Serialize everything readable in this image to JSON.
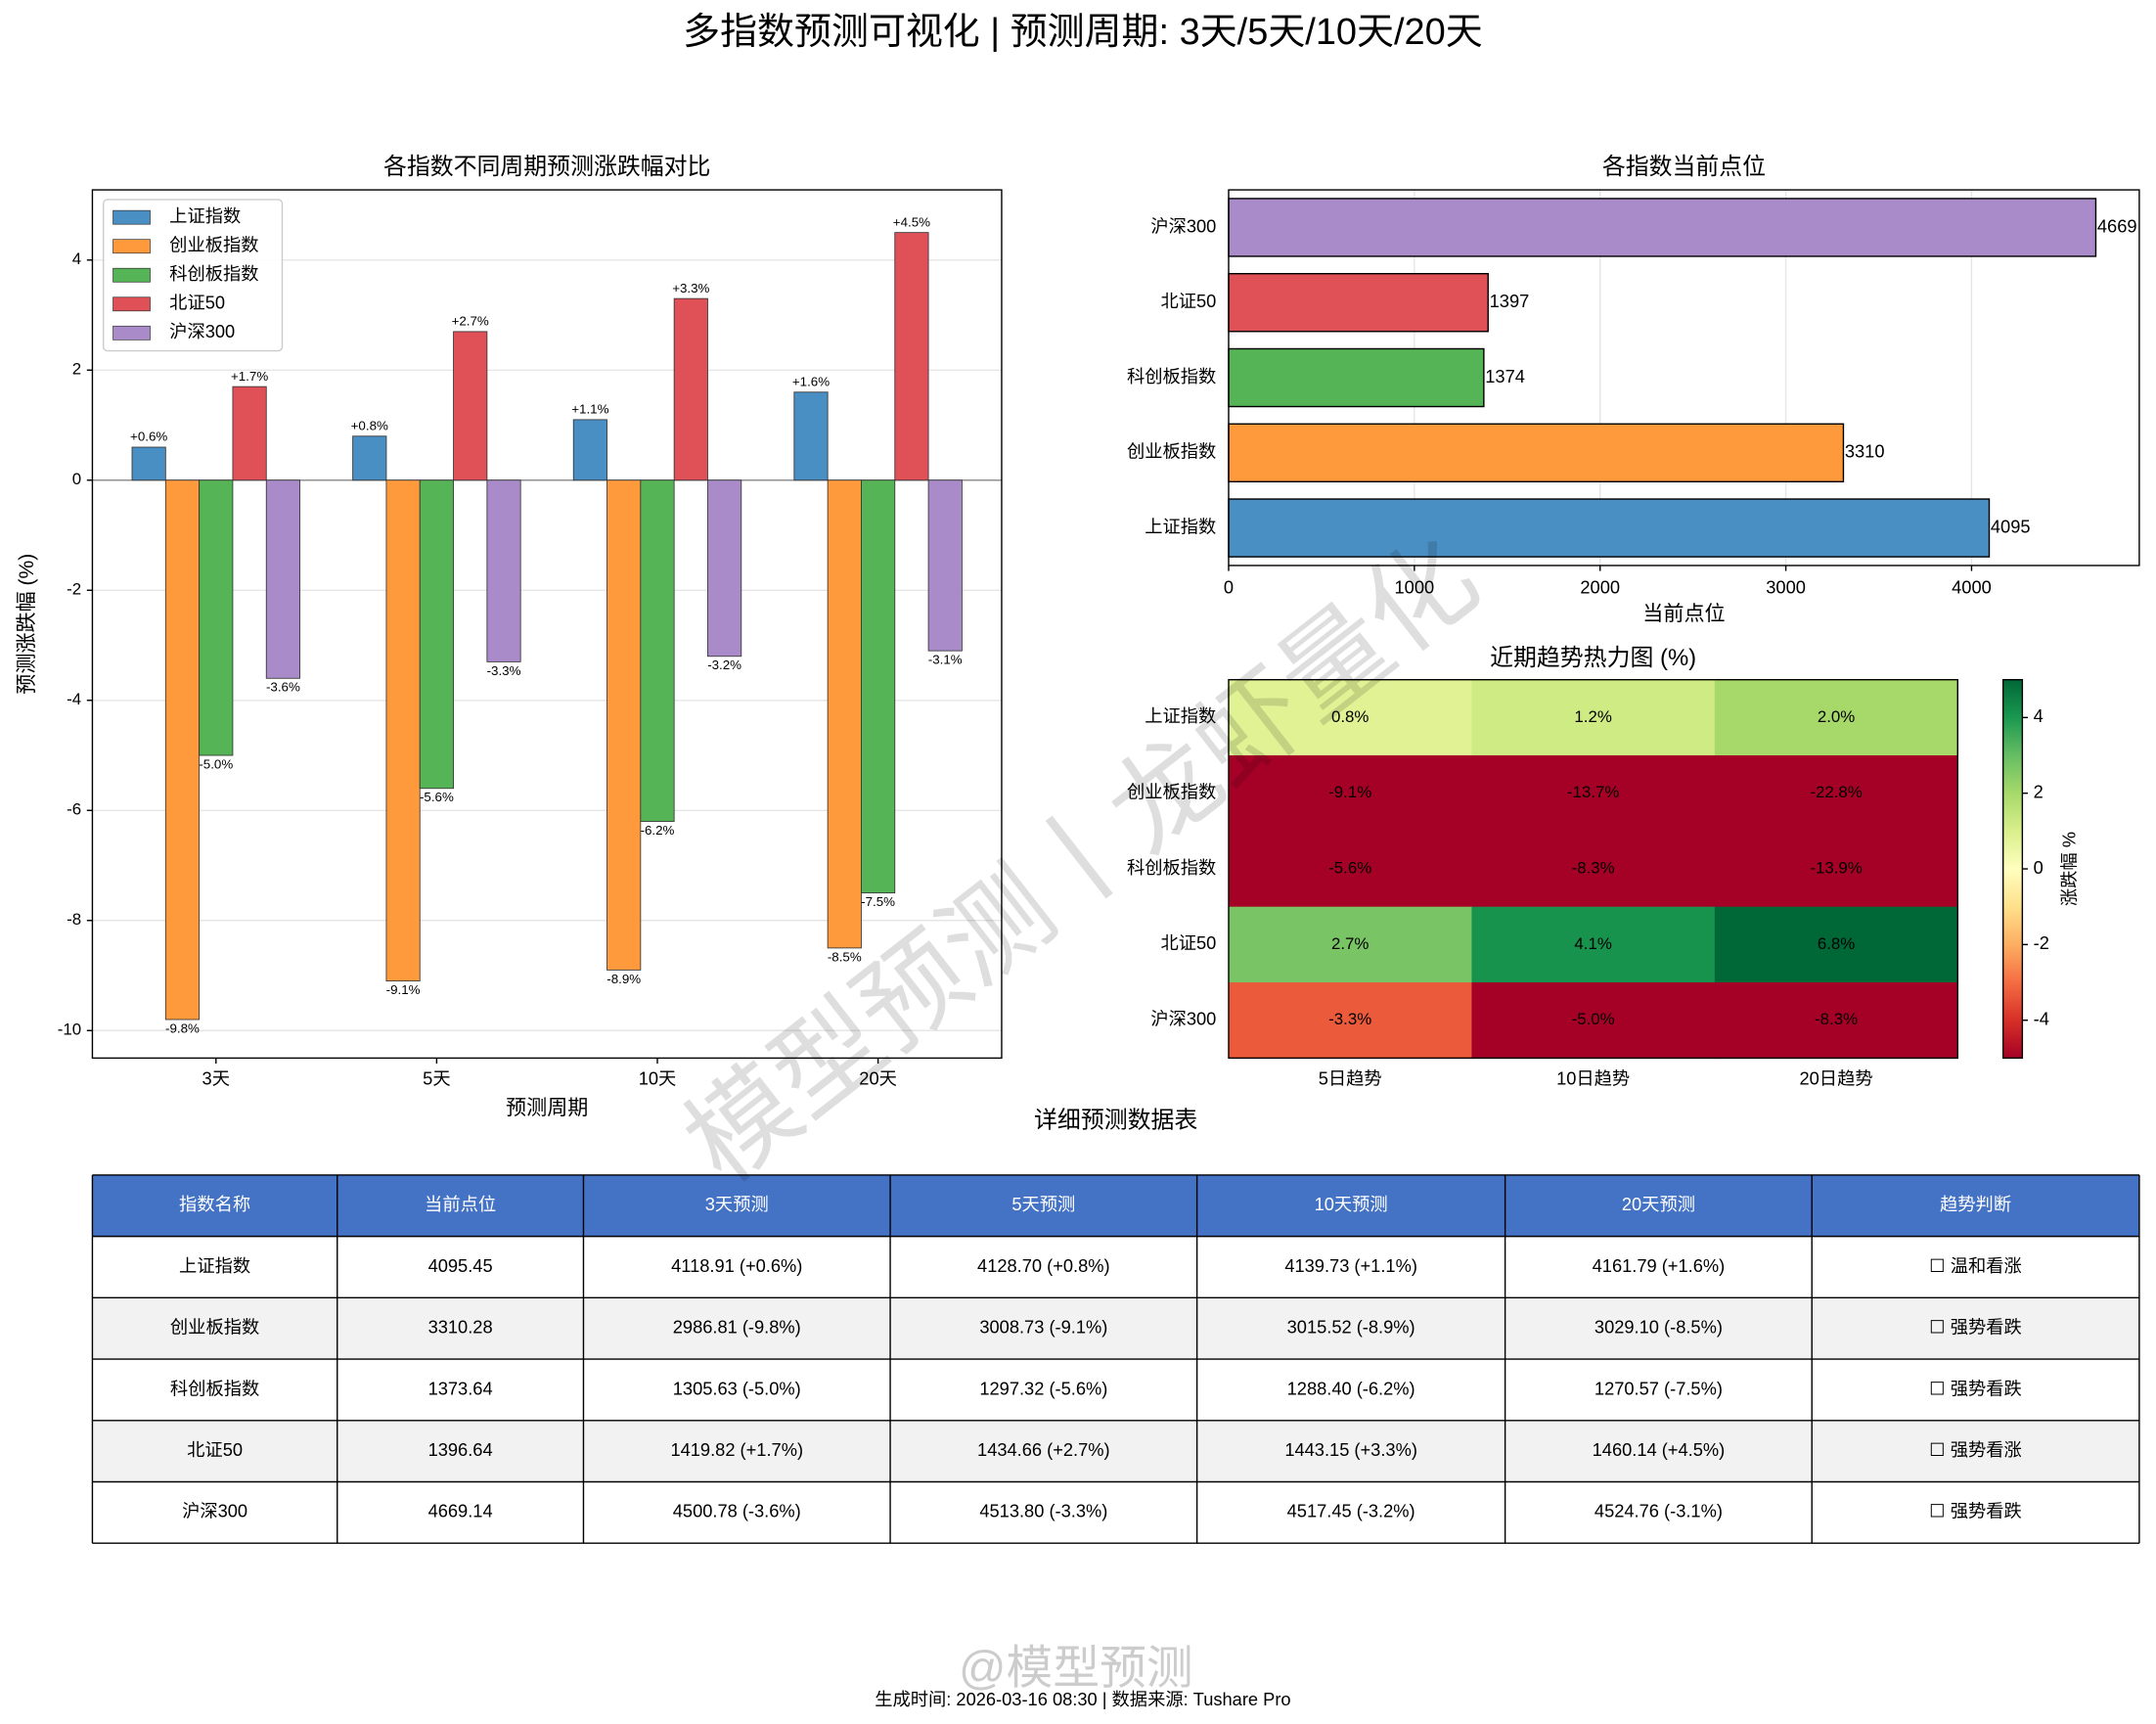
{
  "title": "多指数预测可视化 | 预测周期: 3天/5天/10天/20天",
  "chart_data": [
    {
      "type": "bar",
      "title": "各指数不同周期预测涨跌幅对比",
      "xlabel": "预测周期",
      "ylabel": "预测涨跌幅 (%)",
      "categories": [
        "3天",
        "5天",
        "10天",
        "20天"
      ],
      "series": [
        {
          "name": "上证指数",
          "color": "#4a8fc4",
          "values": [
            0.6,
            0.8,
            1.1,
            1.6
          ],
          "value_labels": [
            "+0.6%",
            "+0.8%",
            "+1.1%",
            "+1.6%"
          ]
        },
        {
          "name": "创业板指数",
          "color": "#ff9a3c",
          "values": [
            -9.8,
            -9.1,
            -8.9,
            -8.5
          ],
          "value_labels": [
            "-9.8%",
            "-9.1%",
            "-8.9%",
            "-8.5%"
          ]
        },
        {
          "name": "科创板指数",
          "color": "#55b455",
          "values": [
            -5.0,
            -5.6,
            -6.2,
            -7.5
          ],
          "value_labels": [
            "-5.0%",
            "-5.6%",
            "-6.2%",
            "-7.5%"
          ]
        },
        {
          "name": "北证50",
          "color": "#e05057",
          "values": [
            1.7,
            2.7,
            3.3,
            4.5
          ],
          "value_labels": [
            "+1.7%",
            "+2.7%",
            "+3.3%",
            "+4.5%"
          ]
        },
        {
          "name": "沪深300",
          "color": "#a98bca",
          "values": [
            -3.6,
            -3.3,
            -3.2,
            -3.1
          ],
          "value_labels": [
            "-3.6%",
            "-3.3%",
            "-3.2%",
            "-3.1%"
          ]
        }
      ],
      "ylim": [
        -10.5,
        5.275
      ],
      "yticks": [
        -10,
        -8,
        -6,
        -4,
        -2,
        0,
        2,
        4
      ],
      "grid": true,
      "legend": "upper left"
    },
    {
      "type": "barh",
      "title": "各指数当前点位",
      "xlabel": "当前点位",
      "categories": [
        "上证指数",
        "创业板指数",
        "科创板指数",
        "北证50",
        "沪深300"
      ],
      "values": [
        4095,
        3310,
        1374,
        1397,
        4669
      ],
      "colors": [
        "#4a8fc4",
        "#ff9a3c",
        "#55b455",
        "#e05057",
        "#a98bca"
      ],
      "xlim": [
        0,
        4903
      ],
      "xticks": [
        0,
        1000,
        2000,
        3000,
        4000
      ],
      "grid": true
    },
    {
      "type": "heatmap",
      "title": "近期趋势热力图 (%)",
      "rows": [
        "上证指数",
        "创业板指数",
        "科创板指数",
        "北证50",
        "沪深300"
      ],
      "columns": [
        "5日趋势",
        "10日趋势",
        "20日趋势"
      ],
      "values": [
        [
          0.8,
          1.2,
          2.0
        ],
        [
          -9.1,
          -13.7,
          -22.8
        ],
        [
          -5.6,
          -8.3,
          -13.9
        ],
        [
          2.7,
          4.1,
          6.8
        ],
        [
          -3.3,
          -5.0,
          -8.3
        ]
      ],
      "value_labels": [
        [
          "0.8%",
          "1.2%",
          "2.0%"
        ],
        [
          "-9.1%",
          "-13.7%",
          "-22.8%"
        ],
        [
          "-5.6%",
          "-8.3%",
          "-13.9%"
        ],
        [
          "2.7%",
          "4.1%",
          "6.8%"
        ],
        [
          "-3.3%",
          "-5.0%",
          "-8.3%"
        ]
      ],
      "cmap": "RdYlGn",
      "clim": [
        -5,
        5
      ],
      "cticks": [
        -4,
        -2,
        0,
        2,
        4
      ],
      "colorbar_label": "涨跌幅 %"
    }
  ],
  "table": {
    "title": "详细预测数据表",
    "header": [
      "指数名称",
      "当前点位",
      "3天预测",
      "5天预测",
      "10天预测",
      "20天预测",
      "趋势判断"
    ],
    "rows": [
      [
        "上证指数",
        "4095.45",
        "4118.91 (+0.6%)",
        "4128.70 (+0.8%)",
        "4139.73 (+1.1%)",
        "4161.79 (+1.6%)",
        "☐ 温和看涨"
      ],
      [
        "创业板指数",
        "3310.28",
        "2986.81 (-9.8%)",
        "3008.73 (-9.1%)",
        "3015.52 (-8.9%)",
        "3029.10 (-8.5%)",
        "☐ 强势看跌"
      ],
      [
        "科创板指数",
        "1373.64",
        "1305.63 (-5.0%)",
        "1297.32 (-5.6%)",
        "1288.40 (-6.2%)",
        "1270.57 (-7.5%)",
        "☐ 强势看跌"
      ],
      [
        "北证50",
        "1396.64",
        "1419.82 (+1.7%)",
        "1434.66 (+2.7%)",
        "1443.15 (+3.3%)",
        "1460.14 (+4.5%)",
        "☐ 强势看涨"
      ],
      [
        "沪深300",
        "4669.14",
        "4500.78 (-3.6%)",
        "4513.80 (-3.3%)",
        "4517.45 (-3.2%)",
        "4524.76 (-3.1%)",
        "☐ 强势看跌"
      ]
    ]
  },
  "footer": "生成时间: 2026-03-16 08:30 | 数据来源: Tushare Pro",
  "watermarks": [
    "模型预测丨龙虾量化",
    "@模型预测"
  ]
}
